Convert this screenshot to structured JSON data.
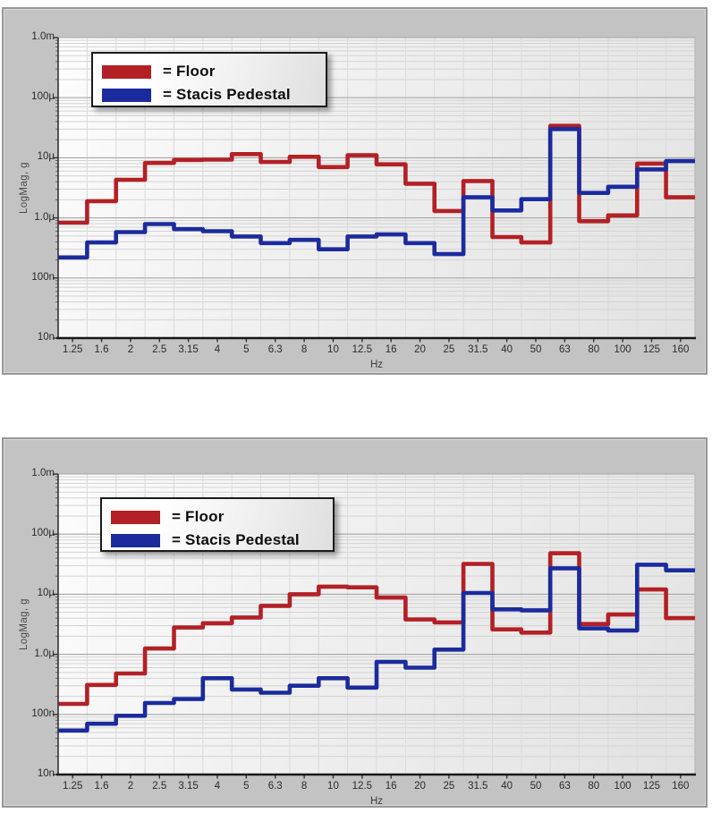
{
  "page": {
    "background": "#ffffff",
    "panel_color": "#c3c3c3"
  },
  "chart_data": [
    {
      "type": "line",
      "subtype": "step-third-octave-band-spectrum",
      "title": "",
      "xlabel": "Hz",
      "ylabel": "LogMag, g",
      "x_categories": [
        "1.25",
        "1.6",
        "2",
        "2.5",
        "3.15",
        "4",
        "5",
        "6.3",
        "8",
        "10",
        "12.5",
        "16",
        "20",
        "25",
        "31.5",
        "40",
        "50",
        "63",
        "80",
        "100",
        "125",
        "160"
      ],
      "y_ticks": [
        "1.0m",
        "100µ",
        "10µ",
        "1.0µ",
        "100n",
        "10n"
      ],
      "ylim_g": [
        1e-08,
        0.001
      ],
      "grid": true,
      "legend_position": "top-left",
      "legend": [
        {
          "label": "= Floor"
        },
        {
          "label": "= Stacis Pedestal"
        }
      ],
      "series": [
        {
          "name": "Floor",
          "color": "#b32025",
          "values_microg": [
            0.83,
            1.9,
            4.3,
            8.2,
            9.2,
            9.3,
            11.5,
            8.5,
            10.4,
            7.0,
            11.0,
            7.8,
            3.7,
            1.3,
            4.1,
            0.48,
            0.39,
            34,
            0.88,
            1.1,
            8.0,
            2.2
          ]
        },
        {
          "name": "Stacis Pedestal",
          "color": "#1b2b9d",
          "values_microg": [
            0.22,
            0.39,
            0.58,
            0.79,
            0.65,
            0.6,
            0.49,
            0.38,
            0.43,
            0.3,
            0.49,
            0.53,
            0.38,
            0.25,
            2.2,
            1.33,
            2.05,
            30,
            2.6,
            3.3,
            6.4,
            8.8
          ]
        }
      ]
    },
    {
      "type": "line",
      "subtype": "step-third-octave-band-spectrum",
      "title": "",
      "xlabel": "Hz",
      "ylabel": "LogMag, g",
      "x_categories": [
        "1.25",
        "1.6",
        "2",
        "2.5",
        "3.15",
        "4",
        "5",
        "6.3",
        "8",
        "10",
        "12.5",
        "16",
        "20",
        "25",
        "31.5",
        "40",
        "50",
        "63",
        "80",
        "100",
        "125",
        "160"
      ],
      "y_ticks": [
        "1.0m",
        "100µ",
        "10µ",
        "1.0µ",
        "100n",
        "10n"
      ],
      "ylim_g": [
        1e-08,
        0.001
      ],
      "grid": true,
      "legend_position": "top-left",
      "legend": [
        {
          "label": "= Floor"
        },
        {
          "label": "= Stacis Pedestal"
        }
      ],
      "series": [
        {
          "name": "Floor",
          "color": "#b32025",
          "values_microg": [
            0.15,
            0.31,
            0.48,
            1.25,
            2.8,
            3.3,
            4.1,
            6.4,
            10,
            13.4,
            13,
            8.8,
            3.8,
            3.4,
            32,
            2.6,
            2.3,
            48,
            3.2,
            4.6,
            12,
            4.0
          ]
        },
        {
          "name": "Stacis Pedestal",
          "color": "#1b2b9d",
          "values_microg": [
            0.054,
            0.07,
            0.095,
            0.155,
            0.18,
            0.4,
            0.26,
            0.23,
            0.3,
            0.4,
            0.28,
            0.75,
            0.6,
            1.2,
            10.5,
            5.6,
            5.4,
            27,
            2.7,
            2.5,
            31,
            25
          ]
        }
      ]
    }
  ]
}
